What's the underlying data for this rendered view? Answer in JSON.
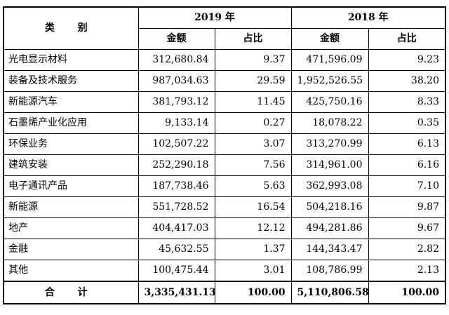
{
  "header": {
    "category": "类 别",
    "year_2019": "2019 年",
    "year_2018": "2018 年",
    "amount": "金额",
    "ratio": "占比"
  },
  "rows": [
    {
      "name": "光电显示材料",
      "a2019": "312,680.84",
      "r2019": "9.37",
      "a2018": "471,596.09",
      "r2018": "9.23"
    },
    {
      "name": "装备及技术服务",
      "a2019": "987,034.63",
      "r2019": "29.59",
      "a2018": "1,952,526.55",
      "r2018": "38.20"
    },
    {
      "name": "新能源汽车",
      "a2019": "381,793.12",
      "r2019": "11.45",
      "a2018": "425,750.16",
      "r2018": "8.33"
    },
    {
      "name": "石墨烯产业化应用",
      "a2019": "9,133.14",
      "r2019": "0.27",
      "a2018": "18,078.22",
      "r2018": "0.35"
    },
    {
      "name": "环保业务",
      "a2019": "102,507.22",
      "r2019": "3.07",
      "a2018": "313,270.99",
      "r2018": "6.13"
    },
    {
      "name": "建筑安装",
      "a2019": "252,290.18",
      "r2019": "7.56",
      "a2018": "314,961.00",
      "r2018": "6.16"
    },
    {
      "name": "电子通讯产品",
      "a2019": "187,738.46",
      "r2019": "5.63",
      "a2018": "362,993.08",
      "r2018": "7.10"
    },
    {
      "name": "新能源",
      "a2019": "551,728.52",
      "r2019": "16.54",
      "a2018": "504,218.16",
      "r2018": "9.87"
    },
    {
      "name": "地产",
      "a2019": "404,417.03",
      "r2019": "12.12",
      "a2018": "494,281.86",
      "r2018": "9.67"
    },
    {
      "name": "金融",
      "a2019": "45,632.55",
      "r2019": "1.37",
      "a2018": "144,343.47",
      "r2018": "2.82"
    },
    {
      "name": "其他",
      "a2019": "100,475.44",
      "r2019": "3.01",
      "a2018": "108,786.99",
      "r2018": "2.13"
    }
  ],
  "total": {
    "label": "合 计",
    "a2019": "3,335,431.13",
    "r2019": "100.00",
    "a2018": "5,110,806.58",
    "r2018": "100.00"
  }
}
